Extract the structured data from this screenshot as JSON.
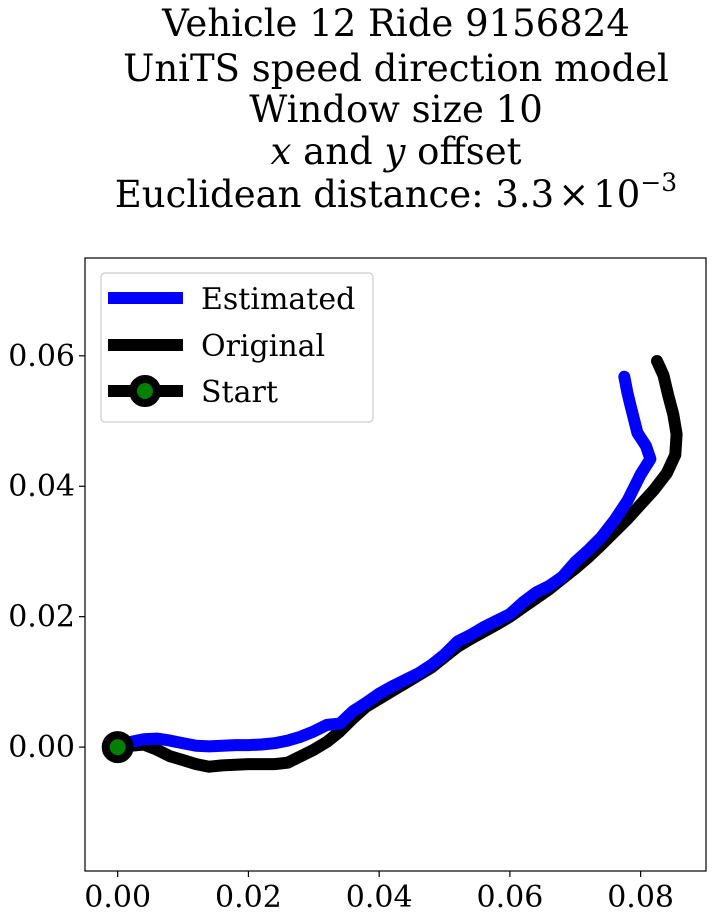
{
  "chart_data": {
    "type": "line",
    "title_lines": [
      "Vehicle 12 Ride 9156824",
      "UniTS speed direction model",
      "Window size 10",
      "x and y offset",
      "Euclidean distance: 3.3 × 10⁻³"
    ],
    "title_line4_parts": [
      "x",
      " and ",
      "y",
      " offset"
    ],
    "title_line5_parts": [
      "Euclidean distance: 3.3",
      "×",
      "10",
      "−3"
    ],
    "xlim": [
      -0.005,
      0.09
    ],
    "ylim": [
      -0.019,
      0.075
    ],
    "xticks": [
      0.0,
      0.02,
      0.04,
      0.06,
      0.08
    ],
    "xtick_labels": [
      "0.00",
      "0.02",
      "0.04",
      "0.06",
      "0.08"
    ],
    "yticks": [
      0.0,
      0.02,
      0.04,
      0.06
    ],
    "ytick_labels": [
      "0.00",
      "0.02",
      "0.04",
      "0.06"
    ],
    "legend": {
      "position": "upper-left",
      "entries": [
        "Estimated",
        "Original",
        "Start"
      ]
    },
    "series": [
      {
        "name": "Estimated",
        "color": "#0000ff",
        "points": [
          [
            0.0,
            0.0
          ],
          [
            0.002,
            0.0008
          ],
          [
            0.004,
            0.0012
          ],
          [
            0.006,
            0.0013
          ],
          [
            0.008,
            0.001
          ],
          [
            0.01,
            0.0006
          ],
          [
            0.012,
            0.0002
          ],
          [
            0.014,
            0.0001
          ],
          [
            0.016,
            0.0002
          ],
          [
            0.018,
            0.0003
          ],
          [
            0.02,
            0.0003
          ],
          [
            0.022,
            0.0004
          ],
          [
            0.024,
            0.0006
          ],
          [
            0.026,
            0.001
          ],
          [
            0.028,
            0.0016
          ],
          [
            0.03,
            0.0024
          ],
          [
            0.032,
            0.0034
          ],
          [
            0.034,
            0.0036
          ],
          [
            0.036,
            0.0055
          ],
          [
            0.038,
            0.0068
          ],
          [
            0.04,
            0.0082
          ],
          [
            0.042,
            0.0093
          ],
          [
            0.044,
            0.0103
          ],
          [
            0.046,
            0.0113
          ],
          [
            0.048,
            0.0126
          ],
          [
            0.05,
            0.0142
          ],
          [
            0.052,
            0.0162
          ],
          [
            0.054,
            0.0172
          ],
          [
            0.056,
            0.0184
          ],
          [
            0.058,
            0.0194
          ],
          [
            0.06,
            0.0204
          ],
          [
            0.062,
            0.0222
          ],
          [
            0.064,
            0.0237
          ],
          [
            0.066,
            0.0247
          ],
          [
            0.068,
            0.0261
          ],
          [
            0.07,
            0.0284
          ],
          [
            0.072,
            0.0302
          ],
          [
            0.074,
            0.0322
          ],
          [
            0.076,
            0.0348
          ],
          [
            0.078,
            0.0378
          ],
          [
            0.08,
            0.0418
          ],
          [
            0.0815,
            0.0442
          ],
          [
            0.0808,
            0.0462
          ],
          [
            0.0795,
            0.0482
          ],
          [
            0.079,
            0.0502
          ],
          [
            0.0785,
            0.0522
          ],
          [
            0.078,
            0.0542
          ],
          [
            0.0775,
            0.0568
          ]
        ]
      },
      {
        "name": "Original",
        "color": "#000000",
        "points": [
          [
            0.0,
            0.0
          ],
          [
            0.002,
            0.0002
          ],
          [
            0.004,
            0.0004
          ],
          [
            0.006,
            -0.0004
          ],
          [
            0.008,
            -0.0014
          ],
          [
            0.01,
            -0.002
          ],
          [
            0.012,
            -0.0026
          ],
          [
            0.014,
            -0.003
          ],
          [
            0.016,
            -0.0028
          ],
          [
            0.018,
            -0.0027
          ],
          [
            0.02,
            -0.0026
          ],
          [
            0.022,
            -0.0026
          ],
          [
            0.024,
            -0.0026
          ],
          [
            0.026,
            -0.0024
          ],
          [
            0.028,
            -0.0014
          ],
          [
            0.03,
            -0.0004
          ],
          [
            0.032,
            0.0008
          ],
          [
            0.034,
            0.0024
          ],
          [
            0.036,
            0.0044
          ],
          [
            0.038,
            0.0062
          ],
          [
            0.04,
            0.0074
          ],
          [
            0.042,
            0.0086
          ],
          [
            0.044,
            0.0098
          ],
          [
            0.046,
            0.011
          ],
          [
            0.048,
            0.0122
          ],
          [
            0.05,
            0.0138
          ],
          [
            0.052,
            0.0154
          ],
          [
            0.054,
            0.0166
          ],
          [
            0.056,
            0.0177
          ],
          [
            0.058,
            0.0188
          ],
          [
            0.06,
            0.02
          ],
          [
            0.062,
            0.0214
          ],
          [
            0.064,
            0.0228
          ],
          [
            0.066,
            0.0242
          ],
          [
            0.068,
            0.0258
          ],
          [
            0.07,
            0.0274
          ],
          [
            0.072,
            0.0291
          ],
          [
            0.074,
            0.031
          ],
          [
            0.076,
            0.033
          ],
          [
            0.078,
            0.035
          ],
          [
            0.08,
            0.0372
          ],
          [
            0.082,
            0.0394
          ],
          [
            0.084,
            0.042
          ],
          [
            0.0853,
            0.0448
          ],
          [
            0.0855,
            0.048
          ],
          [
            0.085,
            0.051
          ],
          [
            0.0842,
            0.054
          ],
          [
            0.0835,
            0.057
          ],
          [
            0.0825,
            0.0592
          ]
        ]
      }
    ],
    "start_point": {
      "label": "Start",
      "x": 0.0,
      "y": 0.0,
      "marker_fill": "#008000",
      "marker_edge": "#000000"
    }
  }
}
